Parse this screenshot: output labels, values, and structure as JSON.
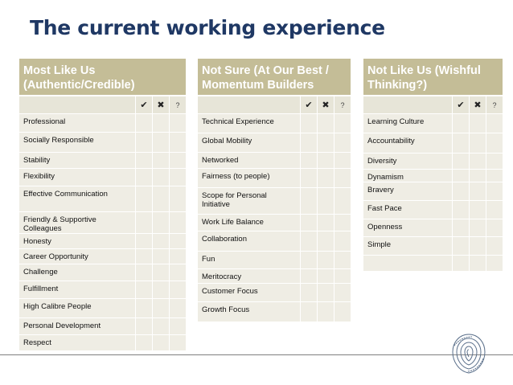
{
  "title": "The current working experience",
  "icons": {
    "check": "✔",
    "cross": "✖",
    "question": "?"
  },
  "panels": [
    {
      "heading_lines": [
        "Most Like Us",
        "(Authentic/Credible)"
      ],
      "items": [
        "Professional",
        "Socially Responsible",
        "Stability",
        "Flexibility",
        "Effective Communication",
        "Friendly & Supportive Colleagues",
        "Honesty",
        "Career Opportunity",
        "Challenge",
        "Fulfillment",
        "High Calibre People",
        "Personal Development",
        "Respect"
      ]
    },
    {
      "heading_lines": [
        "Not Sure (At Our Best /",
        "Momentum Builders"
      ],
      "items": [
        "Technical Experience",
        "Global Mobility",
        "Networked",
        "Fairness (to people)",
        "Scope for Personal Initiative",
        "Work Life Balance",
        "Collaboration",
        "Fun",
        "Meritocracy",
        "Customer Focus",
        "Growth Focus"
      ]
    },
    {
      "heading_lines": [
        "Not Like Us (Wishful",
        "Thinking?)"
      ],
      "items": [
        "Learning Culture",
        "Accountability",
        "Diversity",
        "Dynamism",
        "Bravery",
        "Fast Pace",
        "Openness",
        "Simple",
        ""
      ]
    }
  ]
}
